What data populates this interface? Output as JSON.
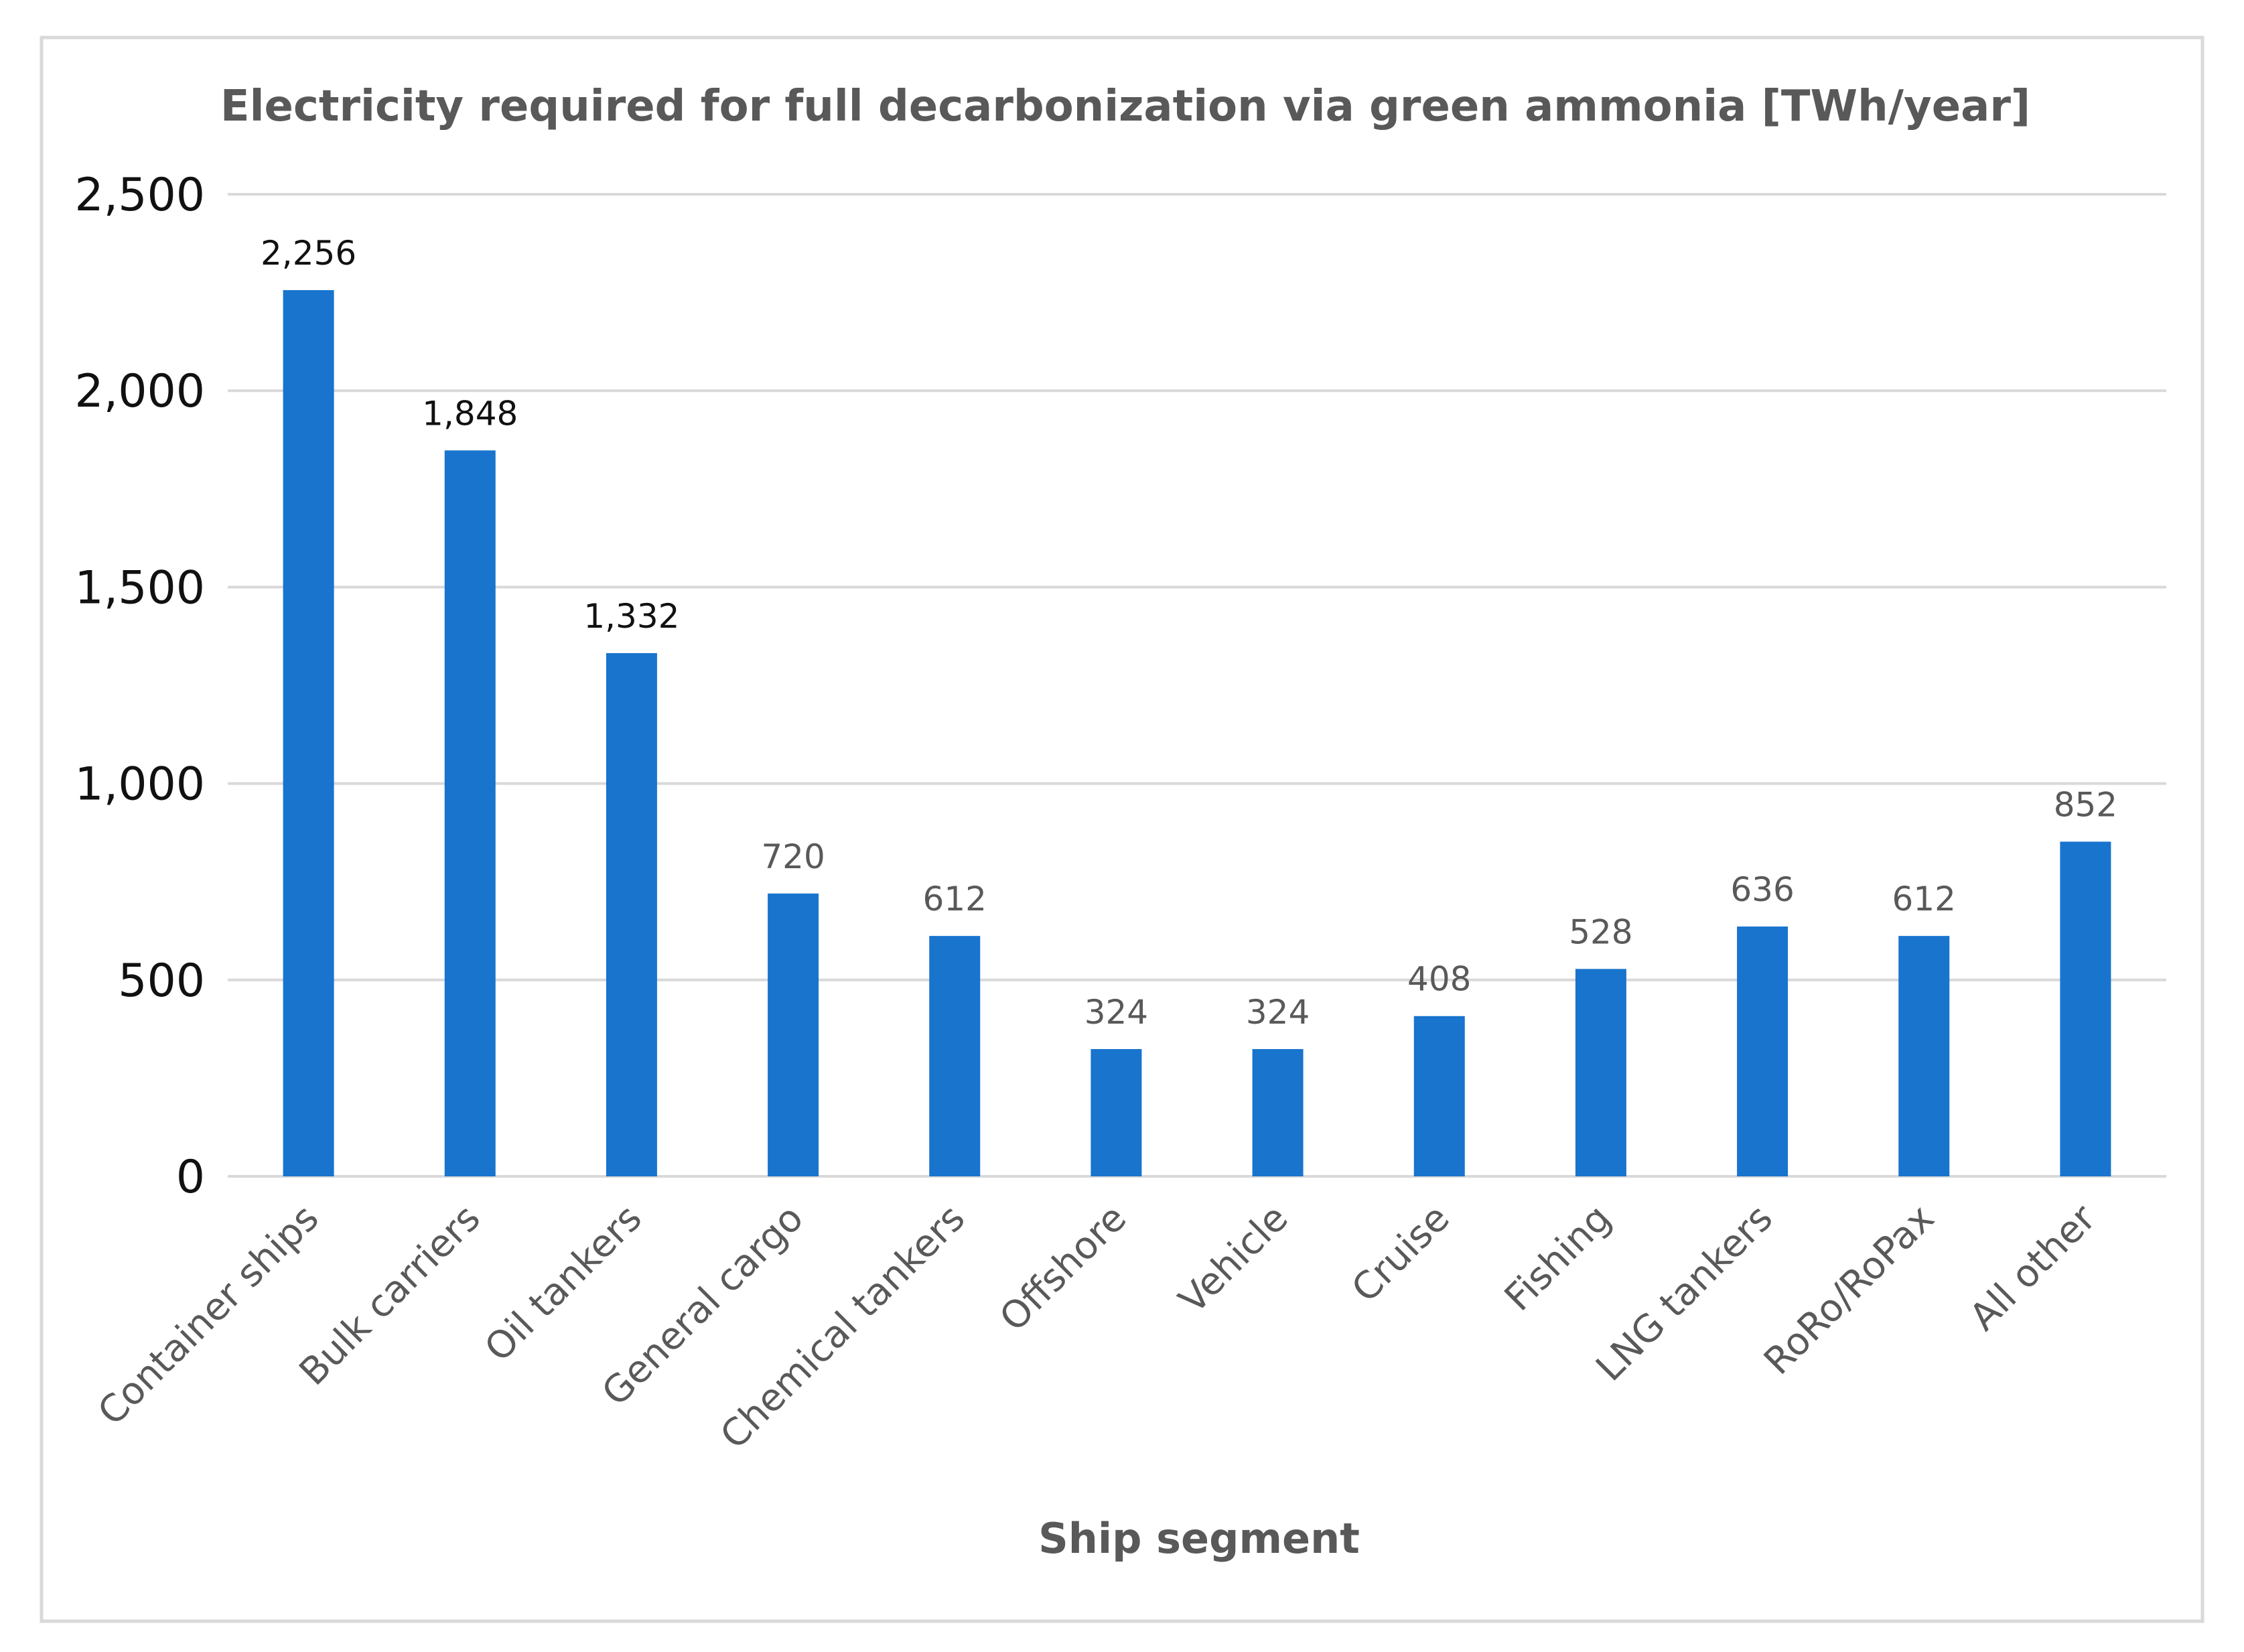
{
  "chart_data": {
    "type": "bar",
    "title": "Electricity required for full decarbonization via green ammonia [TWh/year]",
    "xlabel": "Ship segment",
    "ylabel": "",
    "categories": [
      "Container ships",
      "Bulk carriers",
      "Oil tankers",
      "General cargo",
      "Chemical tankers",
      "Offshore",
      "Vehicle",
      "Cruise",
      "Fishing",
      "LNG tankers",
      "RoRo/RoPax",
      "All other"
    ],
    "values": [
      2256,
      1848,
      1332,
      720,
      612,
      324,
      324,
      408,
      528,
      636,
      612,
      852
    ],
    "data_labels": [
      "2,256",
      "1,848",
      "1,332",
      "720",
      "612",
      "324",
      "324",
      "408",
      "528",
      "636",
      "612",
      "852"
    ],
    "ylim": [
      0,
      2500
    ],
    "yticks": [
      0,
      500,
      1000,
      1500,
      2000,
      2500
    ],
    "ytick_labels": [
      "0",
      "500",
      "1,000",
      "1,500",
      "2,000",
      "2,500"
    ],
    "grid": true,
    "legend": "none",
    "colors": {
      "bar": "#1874cd",
      "grid": "#d9d9d9",
      "frame": "#d9d9d9",
      "title": "#595959",
      "label_dark": "#111111",
      "label_muted": "#595959"
    }
  }
}
